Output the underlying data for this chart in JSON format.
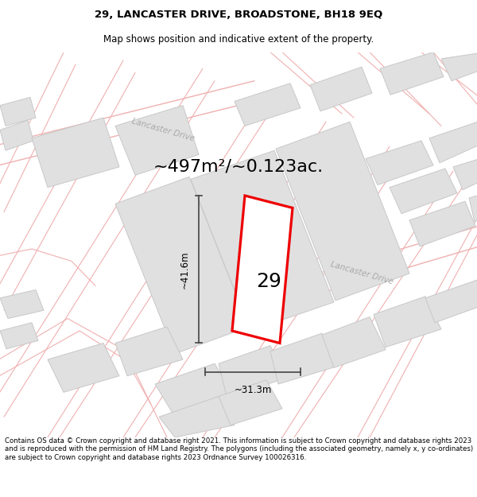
{
  "title": "29, LANCASTER DRIVE, BROADSTONE, BH18 9EQ",
  "subtitle": "Map shows position and indicative extent of the property.",
  "footer": "Contains OS data © Crown copyright and database right 2021. This information is subject to Crown copyright and database rights 2023 and is reproduced with the permission of HM Land Registry. The polygons (including the associated geometry, namely x, y co-ordinates) are subject to Crown copyright and database rights 2023 Ordnance Survey 100026316.",
  "area_text": "~497m²/~0.123ac.",
  "dim_width": "~31.3m",
  "dim_height": "~41.6m",
  "property_number": "29",
  "map_bg": "#f7f7f7",
  "building_fill": "#e0e0e0",
  "building_stroke": "#c8c8c8",
  "road_line_color": "#f0b0b0",
  "red_color": "#ee0000",
  "road_label_color": "#aaaaaa",
  "dim_line_color": "#444444",
  "title_fontsize": 9.5,
  "subtitle_fontsize": 8.5,
  "footer_fontsize": 6.2,
  "area_fontsize": 16,
  "label_fontsize": 7.5,
  "number_fontsize": 18,
  "dim_fontsize": 8.5
}
